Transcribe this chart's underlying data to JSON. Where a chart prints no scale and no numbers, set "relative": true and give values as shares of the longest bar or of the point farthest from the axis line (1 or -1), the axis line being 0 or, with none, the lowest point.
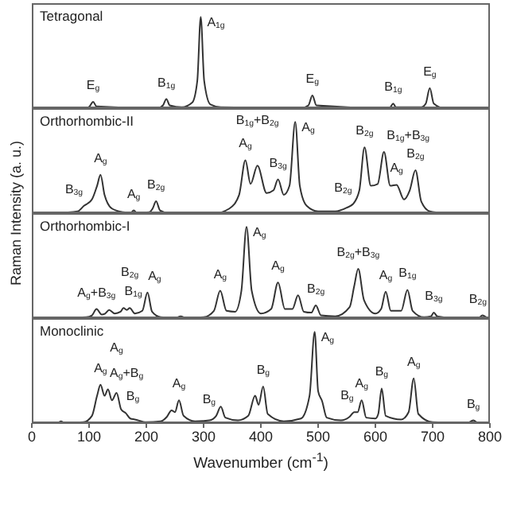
{
  "chart_data": [
    {
      "type": "line",
      "title": "Tetragonal",
      "ylabel": "Raman Intensity (a. u.)",
      "relative": true,
      "color": "#333333",
      "xlim": [
        0,
        800
      ],
      "tick_labels": false,
      "x": [
        50,
        95,
        101,
        107,
        113,
        220,
        229,
        235,
        241,
        262,
        280,
        289,
        295,
        301,
        312,
        330,
        470,
        483,
        490,
        497,
        620,
        626,
        631,
        636,
        680,
        688,
        695,
        702,
        720,
        740
      ],
      "values": [
        0,
        0,
        0.02,
        0.07,
        0.02,
        0,
        0.03,
        0.1,
        0.03,
        0.01,
        0.06,
        0.3,
        1,
        0.3,
        0.04,
        0.01,
        0,
        0.03,
        0.14,
        0.03,
        0,
        0.01,
        0.05,
        0.01,
        0.01,
        0.05,
        0.22,
        0.05,
        0,
        0
      ],
      "annotations": [
        {
          "text": "E$_{g}$",
          "x": 107,
          "y": 0.07
        },
        {
          "text": "B$_{1g}$",
          "x": 235,
          "y": 0.1
        },
        {
          "text": "A$_{1g}$",
          "x": 295,
          "y": 1
        },
        {
          "text": "E$_{g}$",
          "x": 490,
          "y": 0.14
        },
        {
          "text": "B$_{1g}$",
          "x": 631,
          "y": 0.05
        },
        {
          "text": "E$_{g}$",
          "x": 695,
          "y": 0.22
        }
      ]
    },
    {
      "type": "line",
      "title": "Orthorhombic-II",
      "relative": true,
      "color": "#333333",
      "xlim": [
        0,
        800
      ],
      "tick_labels": false,
      "x": [
        40,
        80,
        91,
        105,
        114,
        120,
        127,
        140,
        160,
        172,
        178,
        184,
        205,
        211,
        217,
        224,
        240,
        320,
        345,
        362,
        373,
        382,
        394,
        410,
        422,
        430,
        440,
        450,
        460,
        468,
        480,
        500,
        530,
        550,
        561,
        572,
        581,
        592,
        604,
        615,
        626,
        637,
        650,
        660,
        670,
        680,
        695,
        720
      ],
      "values": [
        0,
        0.02,
        0.08,
        0.15,
        0.3,
        0.42,
        0.2,
        0.05,
        0.01,
        0,
        0.03,
        0,
        0.01,
        0.05,
        0.13,
        0.03,
        0,
        0,
        0.05,
        0.2,
        0.58,
        0.32,
        0.52,
        0.22,
        0.25,
        0.37,
        0.2,
        0.3,
        1,
        0.3,
        0.08,
        0.02,
        0.02,
        0.06,
        0.1,
        0.25,
        0.72,
        0.3,
        0.32,
        0.67,
        0.3,
        0.31,
        0.15,
        0.25,
        0.47,
        0.13,
        0.02,
        0
      ],
      "annotations": [
        {
          "text": "B$_{3g}$",
          "x": 91,
          "y": 0.08
        },
        {
          "text": "A$_{g}$",
          "x": 120,
          "y": 0.42
        },
        {
          "text": "A$_{g}$",
          "x": 178,
          "y": 0.03
        },
        {
          "text": "B$_{2g}$",
          "x": 217,
          "y": 0.13
        },
        {
          "text": "A$_{g}$",
          "x": 373,
          "y": 0.58
        },
        {
          "text": "B$_{1g}$+B$_{2g}$",
          "x": 394,
          "y": 0.52
        },
        {
          "text": "B$_{3g}$",
          "x": 430,
          "y": 0.37
        },
        {
          "text": "A$_{g}$",
          "x": 460,
          "y": 1
        },
        {
          "text": "B$_{2g}$",
          "x": 561,
          "y": 0.1
        },
        {
          "text": "B$_{2g}$",
          "x": 581,
          "y": 0.72
        },
        {
          "text": "B$_{1g}$+B$_{3g}$",
          "x": 615,
          "y": 0.67
        },
        {
          "text": "A$_{g}$",
          "x": 637,
          "y": 0.31
        },
        {
          "text": "B$_{2g}$",
          "x": 670,
          "y": 0.47
        }
      ]
    },
    {
      "type": "line",
      "title": "Orthorhombic-I",
      "relative": true,
      "color": "#333333",
      "xlim": [
        0,
        800
      ],
      "tick_labels": false,
      "x": [
        60,
        95,
        105,
        113,
        122,
        128,
        135,
        145,
        155,
        160,
        166,
        171,
        180,
        193,
        202,
        210,
        225,
        250,
        260,
        270,
        300,
        318,
        329,
        340,
        355,
        366,
        375,
        384,
        400,
        418,
        430,
        442,
        455,
        465,
        475,
        488,
        496,
        505,
        530,
        555,
        563,
        570,
        580,
        600,
        610,
        618,
        627,
        645,
        656,
        665,
        685,
        697,
        702,
        708,
        740,
        780,
        787,
        795
      ],
      "values": [
        0,
        0.01,
        0.03,
        0.1,
        0.04,
        0.05,
        0.09,
        0.05,
        0.07,
        0.11,
        0.09,
        0.11,
        0.05,
        0.08,
        0.28,
        0.07,
        0.01,
        0,
        0.02,
        0,
        0.01,
        0.08,
        0.3,
        0.08,
        0.07,
        0.3,
        1,
        0.3,
        0.05,
        0.1,
        0.39,
        0.1,
        0.1,
        0.25,
        0.07,
        0.06,
        0.14,
        0.03,
        0.02,
        0.12,
        0.35,
        0.54,
        0.2,
        0.05,
        0.1,
        0.29,
        0.08,
        0.08,
        0.31,
        0.08,
        0.01,
        0.02,
        0.06,
        0.02,
        0,
        0,
        0.03,
        0
      ],
      "annotations": [
        {
          "text": "A$_{g}$+B$_{3g}$",
          "x": 113,
          "y": 0.1
        },
        {
          "text": "B$_{1g}$",
          "x": 160,
          "y": 0.11
        },
        {
          "text": "B$_{2g}$",
          "x": 171,
          "y": 0.11
        },
        {
          "text": "A$_{g}$",
          "x": 202,
          "y": 0.28
        },
        {
          "text": "A$_{g}$",
          "x": 329,
          "y": 0.3
        },
        {
          "text": "A$_{g}$",
          "x": 375,
          "y": 1
        },
        {
          "text": "A$_{g}$",
          "x": 430,
          "y": 0.39
        },
        {
          "text": "B$_{2g}$",
          "x": 496,
          "y": 0.14
        },
        {
          "text": "B$_{2g}$+B$_{3g}$",
          "x": 570,
          "y": 0.54
        },
        {
          "text": "A$_{g}$",
          "x": 618,
          "y": 0.29
        },
        {
          "text": "B$_{1g}$",
          "x": 656,
          "y": 0.31
        },
        {
          "text": "B$_{3g}$",
          "x": 702,
          "y": 0.06
        },
        {
          "text": "B$_{2g}$",
          "x": 787,
          "y": 0.03
        }
      ]
    },
    {
      "type": "line",
      "title": "Monoclinic",
      "xlabel": "Wavenumber (cm$^{-1}$)",
      "relative": true,
      "color": "#333333",
      "xlim": [
        0,
        800
      ],
      "xticks": [
        0,
        100,
        200,
        300,
        400,
        500,
        600,
        700,
        800
      ],
      "tick_labels": "x",
      "x": [
        30,
        45,
        51,
        57,
        90,
        105,
        114,
        120,
        127,
        133,
        140,
        148,
        156,
        164,
        172,
        180,
        200,
        225,
        236,
        244,
        250,
        257,
        265,
        285,
        310,
        322,
        330,
        338,
        360,
        378,
        390,
        396,
        404,
        412,
        440,
        470,
        485,
        494,
        500,
        507,
        515,
        540,
        555,
        563,
        569,
        576,
        584,
        600,
        605,
        611,
        618,
        645,
        658,
        667,
        675,
        700,
        760,
        771,
        780,
        790
      ],
      "values": [
        0,
        0,
        0.02,
        0,
        0.01,
        0.08,
        0.3,
        0.42,
        0.3,
        0.37,
        0.25,
        0.33,
        0.15,
        0.11,
        0.05,
        0.04,
        0.01,
        0.02,
        0.07,
        0.14,
        0.12,
        0.25,
        0.08,
        0.02,
        0.03,
        0.08,
        0.18,
        0.06,
        0.03,
        0.08,
        0.3,
        0.2,
        0.4,
        0.1,
        0.02,
        0.05,
        0.3,
        1,
        0.35,
        0.24,
        0.06,
        0.03,
        0.07,
        0.12,
        0.12,
        0.25,
        0.06,
        0.05,
        0.1,
        0.38,
        0.08,
        0.04,
        0.12,
        0.49,
        0.1,
        0.01,
        0,
        0.03,
        0,
        0
      ],
      "annotations": [
        {
          "text": "A$_{g}$",
          "x": 120,
          "y": 0.42
        },
        {
          "text": "A$_{g}$+B$_{g}$",
          "x": 133,
          "y": 0.37
        },
        {
          "text": "A$_{g}$",
          "x": 148,
          "y": 0.33
        },
        {
          "text": "B$_{g}$",
          "x": 164,
          "y": 0.11
        },
        {
          "text": "A$_{g}$",
          "x": 257,
          "y": 0.25
        },
        {
          "text": "B$_{g}$",
          "x": 322,
          "y": 0.08
        },
        {
          "text": "B$_{g}$",
          "x": 404,
          "y": 0.4
        },
        {
          "text": "A$_{g}$",
          "x": 494,
          "y": 1
        },
        {
          "text": "B$_{g}$",
          "x": 563,
          "y": 0.12
        },
        {
          "text": "A$_{g}$",
          "x": 576,
          "y": 0.25
        },
        {
          "text": "B$_{g}$",
          "x": 611,
          "y": 0.38
        },
        {
          "text": "A$_{g}$",
          "x": 667,
          "y": 0.49
        },
        {
          "text": "B$_{g}$",
          "x": 771,
          "y": 0.03
        }
      ]
    }
  ]
}
